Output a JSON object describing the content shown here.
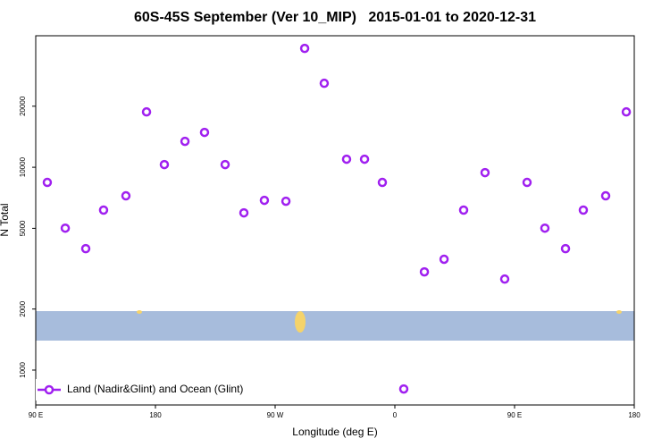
{
  "chart_data": {
    "type": "scatter",
    "title": "60S-45S September (Ver 10_MIP)   2015-01-01 to 2020-12-31",
    "x_label": "Longitude (deg E)",
    "y_label": "N Total",
    "log_y": true,
    "xlim": [
      90,
      540
    ],
    "ylim": [
      673,
      44500
    ],
    "xticks": [
      {
        "value": 90,
        "label": "90 E"
      },
      {
        "value": 180,
        "label": "180"
      },
      {
        "value": 270,
        "label": "90 W"
      },
      {
        "value": 360,
        "label": "0"
      },
      {
        "value": 450,
        "label": "90 E"
      },
      {
        "value": 540,
        "label": "180"
      }
    ],
    "yticks": [
      1000,
      2000,
      5000,
      10000,
      20000
    ],
    "legend": "bottom-left",
    "series": [
      {
        "name": "Land (Nadir&Glint) and Ocean (Glint)",
        "color": "#a020f0",
        "x": [
          98.7,
          112.2,
          127.6,
          141,
          157.8,
          173.3,
          186.7,
          202.2,
          216.9,
          232.4,
          246.5,
          261.9,
          278.1,
          292.2,
          306.9,
          323.7,
          337.2,
          350.6,
          366.7,
          382.2,
          397,
          411.7,
          427.8,
          442.6,
          459.4,
          472.8,
          488.3,
          501.7,
          518.5,
          534
        ],
        "values": [
          8420,
          5010,
          3970,
          6150,
          7230,
          18750,
          10310,
          13420,
          14860,
          10310,
          5960,
          6870,
          6800,
          38550,
          25940,
          10960,
          10960,
          8420,
          807,
          3050,
          3520,
          6150,
          9410,
          2810,
          8420,
          5010,
          3970,
          6150,
          7230,
          18750
        ]
      }
    ]
  }
}
